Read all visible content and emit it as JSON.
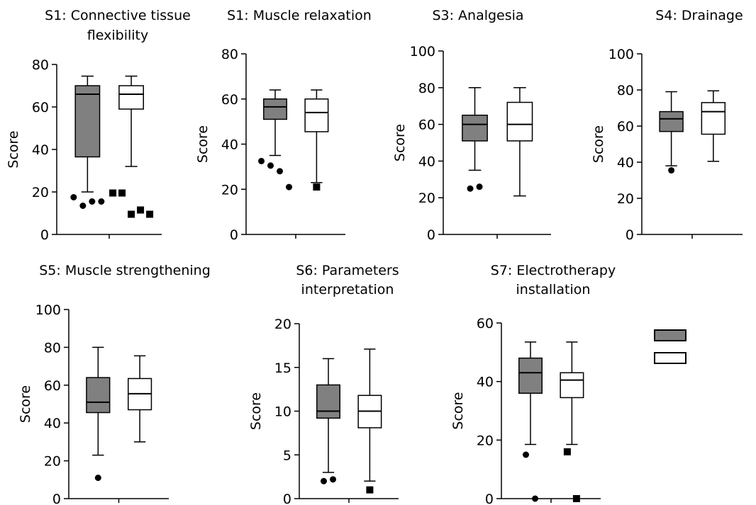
{
  "figure": {
    "colors": {
      "group1_fill": "#808080",
      "group2_fill": "#ffffff",
      "stroke": "#000000"
    }
  },
  "chart_data": [
    {
      "type": "box",
      "title": "S1: Connective tissue flexibility",
      "title_lines": [
        "S1: Connective tissue",
        "flexibility"
      ],
      "ylabel": "Score",
      "ylim": [
        0,
        80
      ],
      "yticks": [
        0,
        20,
        40,
        60,
        80
      ],
      "series": [
        {
          "fill": "#808080",
          "marker": "circle",
          "whisker_low": 20,
          "q1": 36.5,
          "median": 66,
          "q3": 70,
          "whisker_high": 74.5,
          "outliers": [
            17.5,
            13.5,
            15.5,
            15.5
          ]
        },
        {
          "fill": "#ffffff",
          "marker": "square",
          "whisker_low": 32,
          "q1": 59,
          "median": 66,
          "q3": 70,
          "whisker_high": 74.5,
          "outliers": [
            19.5,
            19.5,
            9.5,
            11.5,
            9.5
          ]
        }
      ]
    },
    {
      "type": "box",
      "title": "S1: Muscle relaxation",
      "title_lines": [
        "S1: Muscle relaxation"
      ],
      "ylabel": "Score",
      "ylim": [
        0,
        80
      ],
      "yticks": [
        0,
        20,
        40,
        60,
        80
      ],
      "series": [
        {
          "fill": "#808080",
          "marker": "circle",
          "whisker_low": 35,
          "q1": 51,
          "median": 56.5,
          "q3": 60,
          "whisker_high": 64,
          "outliers": [
            32.5,
            30.5,
            28,
            21
          ]
        },
        {
          "fill": "#ffffff",
          "marker": "square",
          "whisker_low": 23,
          "q1": 45.5,
          "median": 54,
          "q3": 60,
          "whisker_high": 64,
          "outliers": [
            21
          ]
        }
      ]
    },
    {
      "type": "box",
      "title": "S3: Analgesia",
      "title_lines": [
        "S3: Analgesia"
      ],
      "ylabel": "Score",
      "ylim": [
        0,
        100
      ],
      "yticks": [
        0,
        20,
        40,
        60,
        80,
        100
      ],
      "series": [
        {
          "fill": "#808080",
          "marker": "circle",
          "whisker_low": 35,
          "q1": 51,
          "median": 60,
          "q3": 65,
          "whisker_high": 80,
          "outliers": [
            25,
            26
          ]
        },
        {
          "fill": "#ffffff",
          "marker": "square",
          "whisker_low": 21,
          "q1": 51,
          "median": 60,
          "q3": 72,
          "whisker_high": 80,
          "outliers": []
        }
      ]
    },
    {
      "type": "box",
      "title": "S4: Drainage",
      "title_lines": [
        "S4: Drainage"
      ],
      "ylabel": "Score",
      "ylim": [
        0,
        100
      ],
      "yticks": [
        0,
        20,
        40,
        60,
        80,
        100
      ],
      "series": [
        {
          "fill": "#808080",
          "marker": "circle",
          "whisker_low": 38,
          "q1": 57,
          "median": 64,
          "q3": 68,
          "whisker_high": 79,
          "outliers": [
            35.5
          ]
        },
        {
          "fill": "#ffffff",
          "marker": "square",
          "whisker_low": 40.5,
          "q1": 55.5,
          "median": 68,
          "q3": 73,
          "whisker_high": 79.5,
          "outliers": []
        }
      ]
    },
    {
      "type": "box",
      "title": "S5: Muscle strengthening",
      "title_lines": [
        "S5: Muscle strengthening"
      ],
      "ylabel": "Score",
      "ylim": [
        0,
        100
      ],
      "yticks": [
        0,
        20,
        40,
        60,
        80,
        100
      ],
      "series": [
        {
          "fill": "#808080",
          "marker": "circle",
          "whisker_low": 23,
          "q1": 45.5,
          "median": 51,
          "q3": 64,
          "whisker_high": 80,
          "outliers": [
            11
          ]
        },
        {
          "fill": "#ffffff",
          "marker": "square",
          "whisker_low": 30,
          "q1": 47,
          "median": 55.5,
          "q3": 63.5,
          "whisker_high": 75.5,
          "outliers": []
        }
      ]
    },
    {
      "type": "box",
      "title": "S6: Parameters interpretation",
      "title_lines": [
        "S6: Parameters",
        "interpretation"
      ],
      "ylabel": "Score",
      "ylim": [
        0,
        20
      ],
      "yticks": [
        0,
        5,
        10,
        15,
        20
      ],
      "series": [
        {
          "fill": "#808080",
          "marker": "circle",
          "whisker_low": 3,
          "q1": 9.2,
          "median": 10,
          "q3": 13,
          "whisker_high": 16,
          "outliers": [
            2,
            2.2
          ]
        },
        {
          "fill": "#ffffff",
          "marker": "square",
          "whisker_low": 2,
          "q1": 8.1,
          "median": 10,
          "q3": 11.8,
          "whisker_high": 17.1,
          "outliers": [
            1
          ]
        }
      ]
    },
    {
      "type": "box",
      "title": "S7: Electrotherapy installation",
      "title_lines": [
        "S7: Electrotherapy",
        "installation"
      ],
      "ylabel": "Score",
      "ylim": [
        0,
        60
      ],
      "yticks": [
        0,
        20,
        40,
        60
      ],
      "series": [
        {
          "fill": "#808080",
          "marker": "circle",
          "whisker_low": 18.5,
          "q1": 36,
          "median": 43,
          "q3": 48,
          "whisker_high": 53.5,
          "outliers": [
            15,
            0
          ]
        },
        {
          "fill": "#ffffff",
          "marker": "square",
          "whisker_low": 18.5,
          "q1": 34.5,
          "median": 40.5,
          "q3": 43,
          "whisker_high": 53.5,
          "outliers": [
            16,
            0
          ]
        }
      ]
    }
  ]
}
